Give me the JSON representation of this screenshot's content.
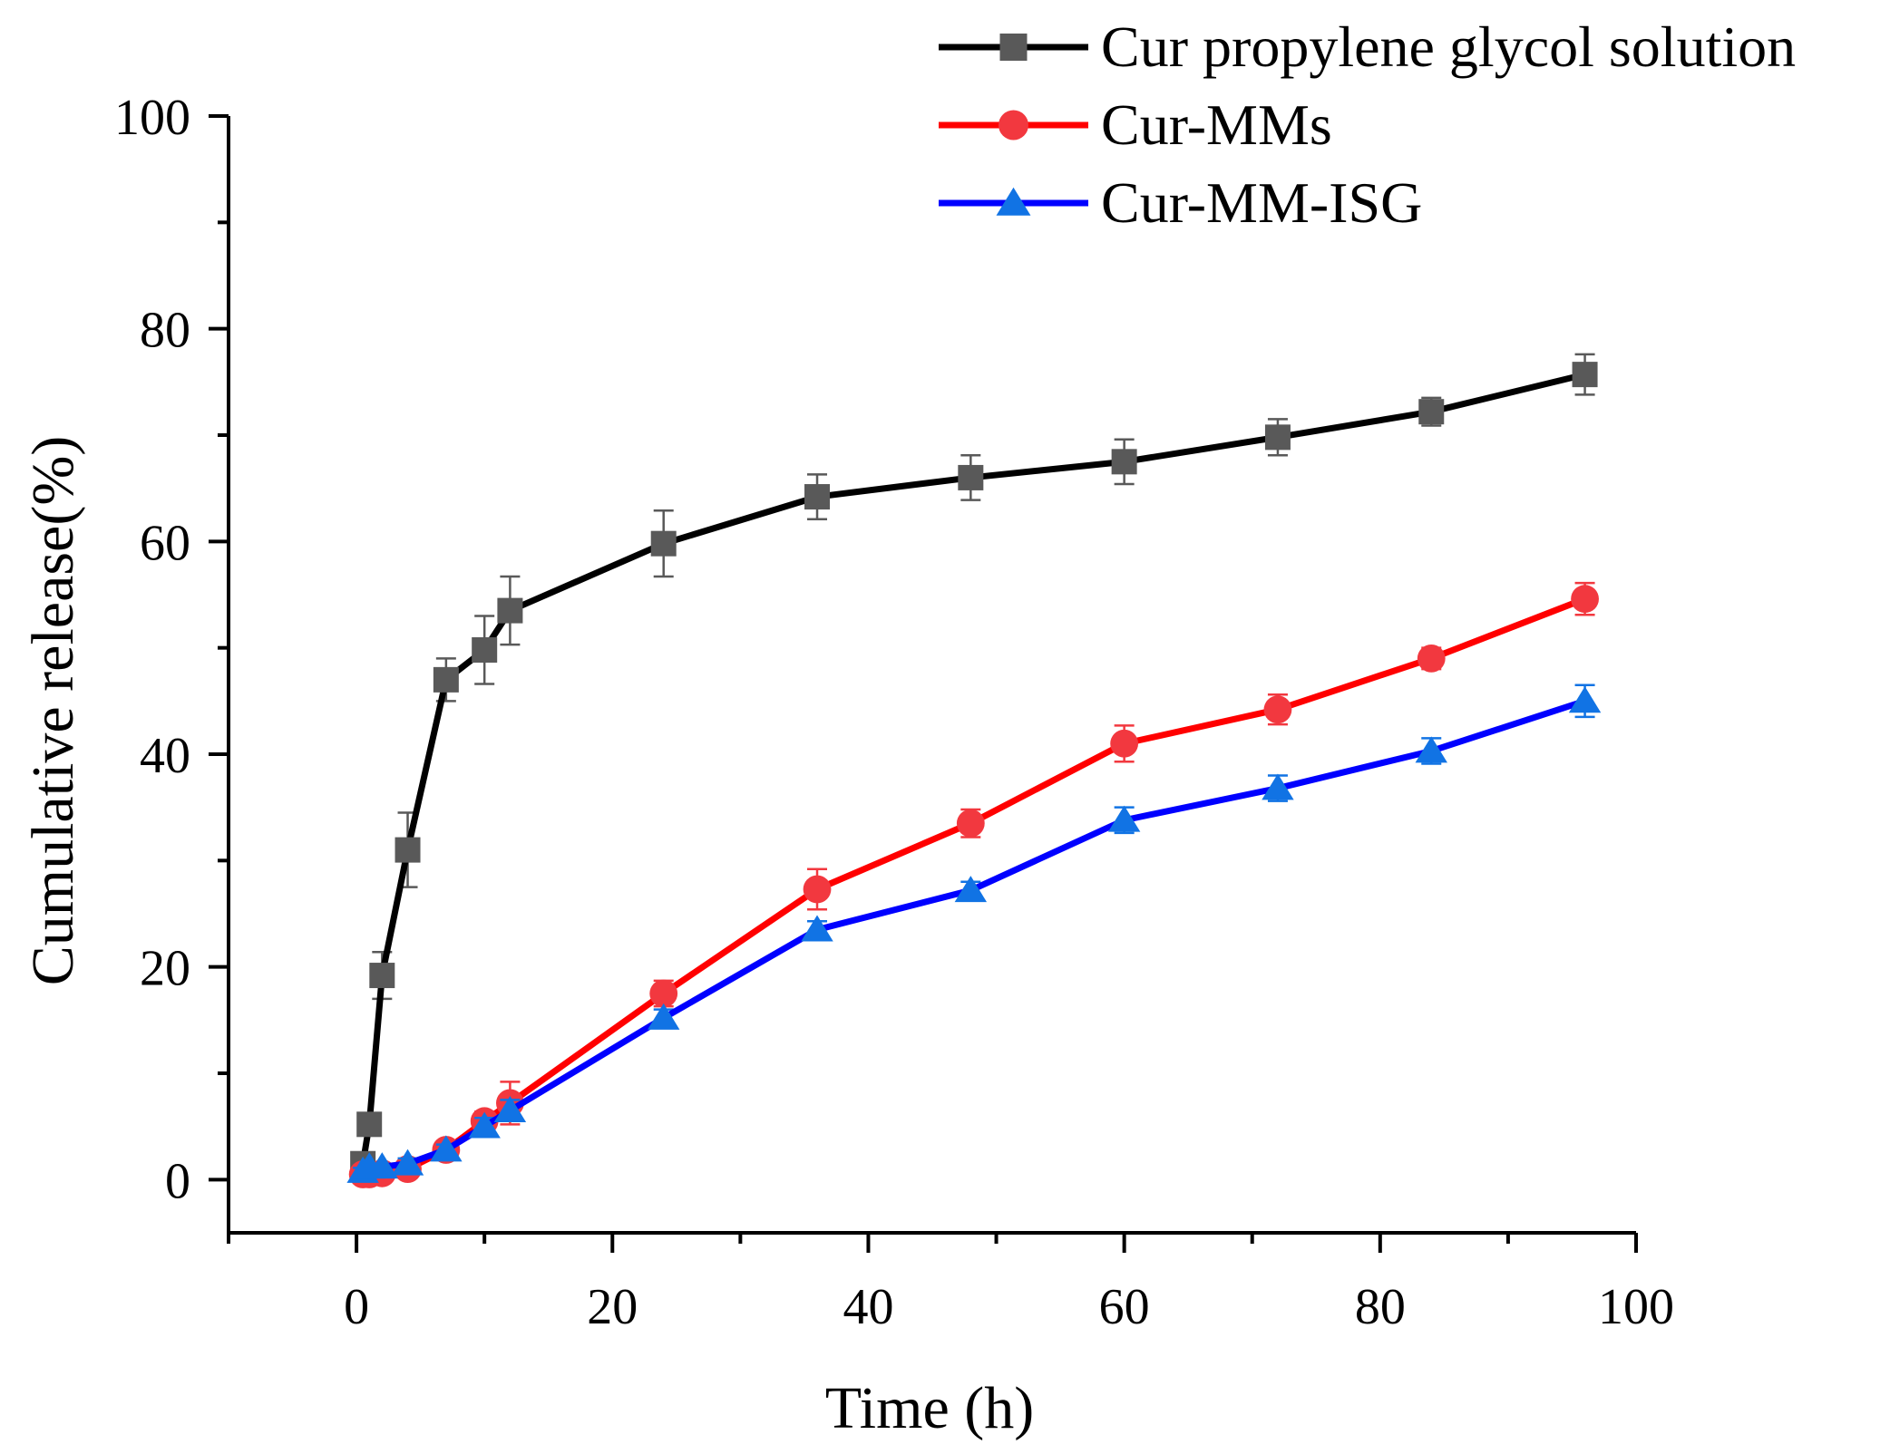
{
  "chart_data": {
    "type": "line",
    "xlabel": "Time (h)",
    "ylabel": "Cumulative release(%)",
    "xlim": [
      -10,
      100
    ],
    "ylim": [
      -5,
      100
    ],
    "xticks": [
      0,
      20,
      40,
      60,
      80,
      100
    ],
    "xtick_labels": [
      "0",
      "20",
      "40",
      "60",
      "80",
      "100"
    ],
    "yticks": [
      0,
      20,
      40,
      60,
      80,
      100
    ],
    "ytick_labels": [
      "0",
      "20",
      "40",
      "60",
      "80",
      "100"
    ],
    "legend_position": "top-right",
    "error_bars": true,
    "x": [
      0.5,
      1,
      2,
      4,
      7,
      10,
      12,
      24,
      36,
      48,
      60,
      72,
      84,
      96
    ],
    "series": [
      {
        "name": "Cur propylene glycol solution",
        "color": "#000000",
        "marker": "square",
        "marker_color": "#595959",
        "values": [
          1.5,
          5.2,
          19.2,
          31.0,
          47.0,
          49.8,
          53.5,
          59.8,
          64.2,
          66.0,
          67.5,
          69.8,
          72.2,
          75.7
        ],
        "errors": [
          0.5,
          0.8,
          2.2,
          3.5,
          2.0,
          3.2,
          3.2,
          3.1,
          2.1,
          2.1,
          2.1,
          1.7,
          1.3,
          1.9
        ]
      },
      {
        "name": "Cur-MMs",
        "color": "#ff0000",
        "marker": "circle",
        "marker_color": "#f2383f",
        "values": [
          0.5,
          0.5,
          0.6,
          1.0,
          2.8,
          5.5,
          7.2,
          17.5,
          27.3,
          33.5,
          41.0,
          44.2,
          49.0,
          54.6
        ],
        "errors": [
          0.3,
          0.3,
          0.3,
          0.5,
          0.6,
          0.9,
          2.0,
          1.2,
          1.9,
          1.3,
          1.7,
          1.4,
          1.0,
          1.5
        ]
      },
      {
        "name": "Cur-MM-ISG",
        "color": "#0000ff",
        "marker": "triangle",
        "marker_color": "#1173e4",
        "values": [
          0.8,
          1.2,
          1.2,
          1.5,
          2.8,
          5.0,
          6.5,
          15.2,
          23.5,
          27.2,
          33.8,
          36.8,
          40.3,
          45.0
        ],
        "errors": [
          0.3,
          0.3,
          0.3,
          0.5,
          0.5,
          0.8,
          1.0,
          0.8,
          0.8,
          0.8,
          1.2,
          1.2,
          1.2,
          1.5
        ]
      }
    ]
  }
}
